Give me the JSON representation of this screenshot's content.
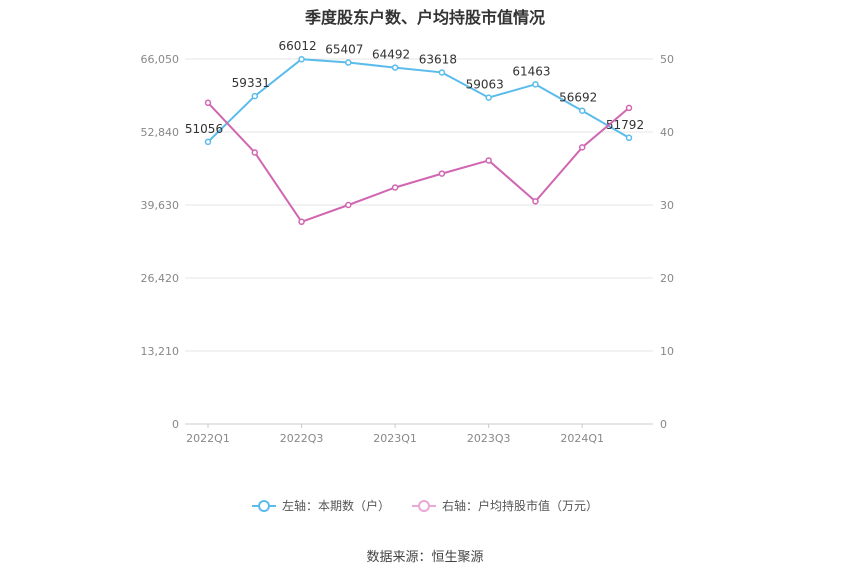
{
  "chart_data": {
    "type": "line",
    "title": "季度股东户数、户均持股市值情况",
    "categories": [
      "2022Q1",
      "2022Q2",
      "2022Q3",
      "2022Q4",
      "2023Q1",
      "2023Q2",
      "2023Q3",
      "2023Q4",
      "2024Q1",
      "2024Q2"
    ],
    "x_tick_labels": [
      "2022Q1",
      "2022Q3",
      "2023Q1",
      "2023Q3",
      "2024Q1"
    ],
    "y_left": {
      "ticks": [
        "0",
        "13,210",
        "26,420",
        "39,630",
        "52,840",
        "66,050"
      ],
      "ylim": [
        0,
        66050
      ]
    },
    "y_right": {
      "ticks": [
        "0",
        "10",
        "20",
        "30",
        "40",
        "50"
      ],
      "ylim": [
        0,
        50
      ]
    },
    "series": [
      {
        "name": "左轴：本期数（户）",
        "axis": "left",
        "color": "#5bbcec",
        "values": [
          51056,
          59331,
          66012,
          65407,
          64492,
          63618,
          59063,
          61463,
          56692,
          51792
        ],
        "labels": [
          "51056",
          "59331",
          "66012",
          "65407",
          "64492",
          "63618",
          "59063",
          "61463",
          "56692",
          "51792"
        ]
      },
      {
        "name": "右轴：户均持股市值（万元）",
        "axis": "right",
        "color": "#d066b1",
        "values": [
          44.0,
          37.2,
          27.7,
          30.0,
          32.4,
          34.3,
          36.1,
          30.5,
          37.9,
          43.3
        ]
      }
    ],
    "grid": true,
    "legend_position": "bottom"
  },
  "legend": {
    "left_label": "左轴：本期数（户）",
    "right_label": "右轴：户均持股市值（万元）"
  },
  "source": "数据来源：恒生聚源"
}
